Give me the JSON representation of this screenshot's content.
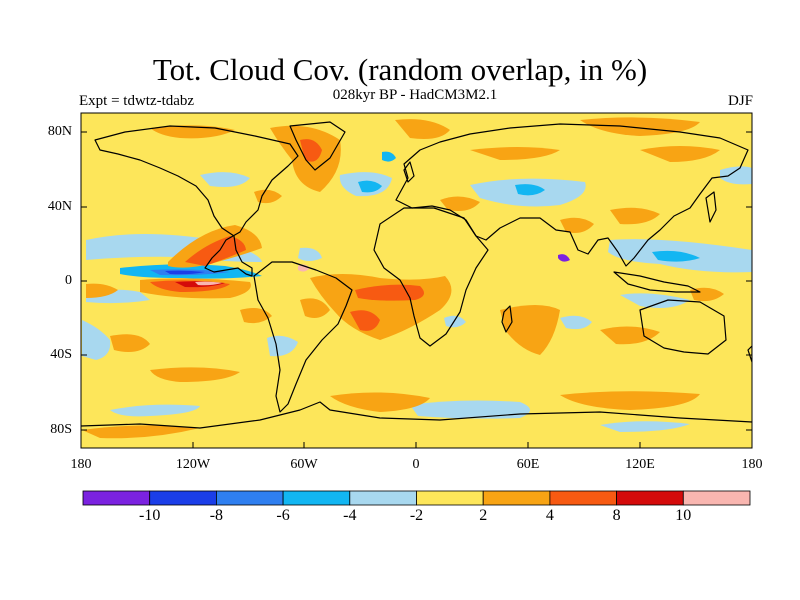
{
  "title": "Tot. Cloud Cov. (random overlap, in %)",
  "subtitle": "028kyr BP - HadCM3M2.1",
  "experiment_label": "Expt = tdwtz-tdabz",
  "season_label": "DJF",
  "axes": {
    "y_ticks": [
      "80N",
      "40N",
      "0",
      "40S",
      "80S"
    ],
    "x_ticks": [
      "180",
      "120W",
      "60W",
      "0",
      "60E",
      "120E",
      "180"
    ]
  },
  "colorbar": {
    "colors": [
      "#7b22e0",
      "#1b3ee8",
      "#2f7ff0",
      "#12b6f2",
      "#a8d8ef",
      "#fde65a",
      "#f8a414",
      "#f75a12",
      "#d40a0a",
      "#f9b6b0"
    ],
    "labels": [
      "-10",
      "-8",
      "-6",
      "-4",
      "-2",
      "2",
      "4",
      "8",
      "10"
    ]
  },
  "chart_data": {
    "type": "heatmap",
    "title": "Tot. Cloud Cov. (random overlap, in %)",
    "subtitle": "028kyr BP - HadCM3M2.1",
    "xlim": [
      -180,
      180
    ],
    "ylim": [
      -90,
      90
    ],
    "contour_levels": [
      -10,
      -8,
      -6,
      -4,
      -2,
      2,
      4,
      8,
      10
    ],
    "background_class": "-2 to 2"
  }
}
